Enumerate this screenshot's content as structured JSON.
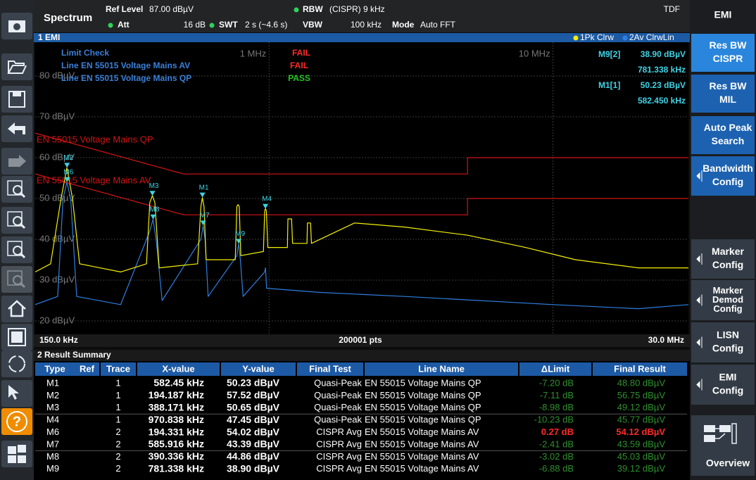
{
  "header": {
    "title": "Spectrum",
    "ref_level_label": "Ref Level",
    "ref_level": "87.00 dBµV",
    "att_label": "Att",
    "att": "16 dB",
    "swt_label": "SWT",
    "swt": "2 s (~4.6 s)",
    "rbw_label": "RBW",
    "rbw": "(CISPR) 9 kHz",
    "vbw_label": "VBW",
    "vbw": "100 kHz",
    "mode_label": "Mode",
    "mode": "Auto FFT",
    "tdf": "TDF"
  },
  "toolbar": {
    "help": "?"
  },
  "chart_data": {
    "type": "line",
    "window_title": "1 EMI",
    "xscale": "log",
    "xlim": [
      150,
      30000
    ],
    "x_start_label": "150.0 kHz",
    "x_end_label": "30.0 MHz",
    "points_label": "200001 pts",
    "xticks": [
      {
        "value": 1000,
        "label": "1 MHz"
      },
      {
        "value": 10000,
        "label": "10 MHz"
      }
    ],
    "ylim": [
      17,
      87
    ],
    "yticks": [
      {
        "value": 20,
        "label": "20 dBµV"
      },
      {
        "value": 30,
        "label": "30 dBµV"
      },
      {
        "value": 40,
        "label": "40 dBµV"
      },
      {
        "value": 50,
        "label": "50 dBµV"
      },
      {
        "value": 60,
        "label": "60 dBµV"
      },
      {
        "value": 70,
        "label": "70 dBµV"
      },
      {
        "value": 80,
        "label": "80 dBµV"
      }
    ],
    "grid": true,
    "series": [
      {
        "name": "1Pk Clrw",
        "color": "#f5f000",
        "x": [
          150,
          170,
          185,
          194,
          203,
          215,
          300,
          370,
          380,
          388,
          396,
          410,
          560,
          575,
          582,
          590,
          600,
          760,
          770,
          777,
          785,
          795,
          955,
          965,
          971,
          978,
          990,
          1160,
          1165,
          1200,
          1210,
          1360,
          1365,
          1400,
          1410,
          2000,
          3000,
          5000,
          8000,
          12000,
          20000,
          30000
        ],
        "values": [
          32,
          34,
          50,
          57.5,
          50,
          34,
          32,
          34,
          49,
          50.7,
          49,
          33,
          34,
          48,
          50.2,
          48,
          35,
          35,
          48,
          48.5,
          48,
          36,
          37,
          47,
          47.5,
          47,
          38,
          38,
          45,
          45,
          39,
          39,
          44,
          44,
          39,
          44,
          43,
          41,
          38,
          35,
          33,
          33
        ]
      },
      {
        "name": "2Av ClrwLin",
        "color": "#2f7fe0",
        "x": [
          150,
          180,
          188,
          194,
          200,
          210,
          300,
          380,
          390,
          400,
          420,
          575,
          586,
          595,
          610,
          770,
          781,
          792,
          810,
          965,
          971,
          980,
          1500,
          3000,
          10000,
          20000,
          30000
        ],
        "values": [
          24,
          26,
          50,
          54,
          50,
          26,
          24,
          42,
          44.9,
          40,
          25,
          40,
          43.4,
          40,
          26,
          36,
          38.9,
          35,
          26,
          32,
          33,
          28,
          27,
          26,
          24,
          23,
          24
        ]
      }
    ],
    "limit_lines": [
      {
        "name": "EN 55015 Voltage Mains QP",
        "color": "#d41414",
        "x": [
          150,
          500,
          5000,
          5000,
          30000
        ],
        "values": [
          66,
          56,
          56,
          60,
          60
        ]
      },
      {
        "name": "EN 55015 Voltage Mains AV",
        "color": "#d41414",
        "x": [
          150,
          500,
          5000,
          5000,
          30000
        ],
        "values": [
          56,
          46,
          46,
          50,
          50
        ]
      }
    ],
    "marker_color": "#3fd3e6",
    "markers": [
      {
        "label": "M1",
        "x": 582.45,
        "y": 50.23
      },
      {
        "label": "M2",
        "x": 194.187,
        "y": 57.52
      },
      {
        "label": "M3",
        "x": 388.171,
        "y": 50.65
      },
      {
        "label": "M4",
        "x": 970.838,
        "y": 47.45
      },
      {
        "label": "M6",
        "x": 194.331,
        "y": 54.02
      },
      {
        "label": "M7",
        "x": 585.916,
        "y": 43.39
      },
      {
        "label": "M8",
        "x": 390.336,
        "y": 44.86
      },
      {
        "label": "M9",
        "x": 781.338,
        "y": 38.9
      }
    ],
    "marker_readout": [
      {
        "label": "M9[2]",
        "y": "38.90 dBµV",
        "x": "781.338 kHz"
      },
      {
        "label": "M1[1]",
        "y": "50.23 dBµV",
        "x": "582.450 kHz"
      }
    ],
    "limit_check": {
      "title": "Limit Check",
      "result": "FAIL",
      "color": "#ff2a2a",
      "lines": [
        {
          "name": "Line EN 55015 Voltage Mains AV",
          "result": "FAIL",
          "color": "#ff2a2a"
        },
        {
          "name": "Line EN 55015 Voltage Mains QP",
          "result": "PASS",
          "color": "#25c825"
        }
      ]
    }
  },
  "result_summary": {
    "title": "2 Result Summary",
    "columns": [
      "Type",
      "Ref",
      "Trace",
      "X-value",
      "Y-value",
      "Final Test",
      "Line Name",
      "ΔLimit",
      "Final Result"
    ],
    "rows": [
      [
        "M1",
        "1",
        "582.45 kHz",
        "50.23 dBµV",
        "Quasi-Peak",
        "EN 55015 Voltage Mains QP",
        "-7.20 dB",
        "48.80 dBµV"
      ],
      [
        "M2",
        "1",
        "194.187 kHz",
        "57.52 dBµV",
        "Quasi-Peak",
        "EN 55015 Voltage Mains QP",
        "-7.11 dB",
        "56.75 dBµV"
      ],
      [
        "M3",
        "1",
        "388.171 kHz",
        "50.65 dBµV",
        "Quasi-Peak",
        "EN 55015 Voltage Mains QP",
        "-8.98 dB",
        "49.12 dBµV"
      ],
      [
        "M4",
        "1",
        "970.838 kHz",
        "47.45 dBµV",
        "Quasi-Peak",
        "EN 55015 Voltage Mains QP",
        "-10.23 dB",
        "45.77 dBµV"
      ],
      [
        "M6",
        "2",
        "194.331 kHz",
        "54.02 dBµV",
        "CISPR Avg",
        "EN 55015 Voltage Mains AV",
        "0.27 dB",
        "54.12 dBµV"
      ],
      [
        "M7",
        "2",
        "585.916 kHz",
        "43.39 dBµV",
        "CISPR Avg",
        "EN 55015 Voltage Mains AV",
        "-2.41 dB",
        "43.59 dBµV"
      ],
      [
        "M8",
        "2",
        "390.336 kHz",
        "44.86 dBµV",
        "CISPR Avg",
        "EN 55015 Voltage Mains AV",
        "-3.02 dB",
        "45.03 dBµV"
      ],
      [
        "M9",
        "2",
        "781.338 kHz",
        "38.90 dBµV",
        "CISPR Avg",
        "EN 55015 Voltage Mains AV",
        "-6.88 dB",
        "39.12 dBµV"
      ]
    ],
    "row_colors": [
      "#2f8f2f",
      "#2f8f2f",
      "#2f8f2f",
      "#2f8f2f",
      "#ff2a2a",
      "#2f8f2f",
      "#2f8f2f",
      "#2f8f2f"
    ]
  },
  "softkeys": {
    "title": "EMI",
    "keys": [
      {
        "lines": [
          "Res BW",
          "CISPR"
        ],
        "color": "#2a86dc",
        "submenu": false
      },
      {
        "lines": [
          "Res BW",
          "MIL"
        ],
        "color": "#1d62b0",
        "submenu": false
      },
      {
        "lines": [
          "Auto Peak",
          "Search"
        ],
        "color": "#1d62b0",
        "submenu": false
      },
      {
        "lines": [
          "Bandwidth",
          "Config"
        ],
        "color": "#1d62b0",
        "submenu": true
      },
      {
        "lines": [
          "Marker",
          "Config"
        ],
        "color": "#333c46",
        "submenu": true
      },
      {
        "lines": [
          "Marker",
          "Demod",
          "Config"
        ],
        "color": "#333c46",
        "submenu": true
      },
      {
        "lines": [
          "LISN",
          "Config"
        ],
        "color": "#333c46",
        "submenu": true
      },
      {
        "lines": [
          "EMI",
          "Config"
        ],
        "color": "#333c46",
        "submenu": true
      },
      {
        "lines": [
          "Overview"
        ],
        "color": "#333c46",
        "submenu": false
      }
    ]
  }
}
